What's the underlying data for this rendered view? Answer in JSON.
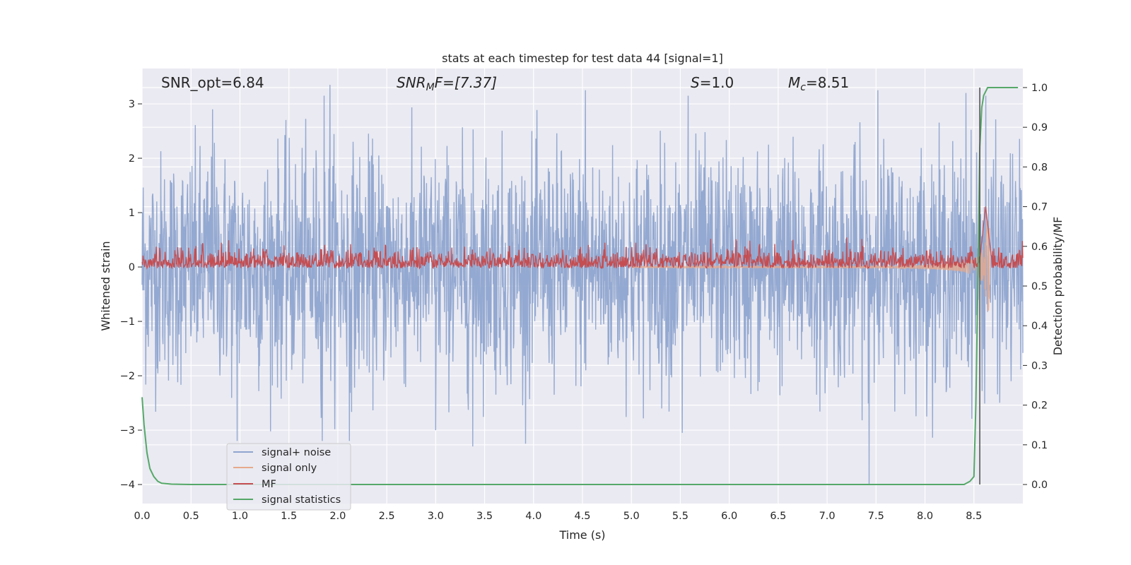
{
  "chart_data": {
    "type": "line",
    "title": "stats at each timestep for test data 44 [signal=1]",
    "xlabel": "Time (s)",
    "ylabel": "Whitened strain",
    "y2label": "Detection probability/MF",
    "xlim": [
      0.0,
      9.0
    ],
    "ylim": [
      -4.35,
      3.65
    ],
    "y2lim": [
      -0.048,
      1.048
    ],
    "xticks": [
      0.0,
      0.5,
      1.0,
      1.5,
      2.0,
      2.5,
      3.0,
      3.5,
      4.0,
      4.5,
      5.0,
      5.5,
      6.0,
      6.5,
      7.0,
      7.5,
      8.0,
      8.5
    ],
    "xtick_labels": [
      "0.0",
      "0.5",
      "1.0",
      "1.5",
      "2.0",
      "2.5",
      "3.0",
      "3.5",
      "4.0",
      "4.5",
      "5.0",
      "5.5",
      "6.0",
      "6.5",
      "7.0",
      "7.5",
      "8.0",
      "8.5"
    ],
    "yticks": [
      3,
      2,
      1,
      0,
      -1,
      -2,
      -3,
      -4
    ],
    "ytick_labels": [
      "3",
      "2",
      "1",
      "0",
      "−1",
      "−2",
      "−3",
      "−4"
    ],
    "y2ticks": [
      1.0,
      0.9,
      0.8,
      0.7,
      0.6,
      0.5,
      0.4,
      0.3,
      0.2,
      0.1,
      0.0
    ],
    "y2tick_labels": [
      "1.0",
      "0.9",
      "0.8",
      "0.7",
      "0.6",
      "0.5",
      "0.4",
      "0.3",
      "0.2",
      "0.1",
      "0.0"
    ],
    "grid": true,
    "legend_position": "lower-left",
    "annotations": {
      "snr_opt": "SNR_opt=6.84",
      "snr_mf_main": "SNR",
      "snr_mf_sub": "M",
      "snr_mf_rest": "F=[7.37]",
      "s_main": "S",
      "s_rest": "=1.0",
      "mc_main": "M",
      "mc_sub": "c",
      "mc_rest": "=8.51"
    },
    "vertical_marker_x": 8.56,
    "series": [
      {
        "name": "signal+ noise",
        "color": "#8fa5cf",
        "axis": "left",
        "noise_sigma": 1.0,
        "spikes": [
          {
            "x": 1.92,
            "y": 3.35
          },
          {
            "x": 1.86,
            "y": 3.15
          },
          {
            "x": 7.43,
            "y": -4.0
          },
          {
            "x": 3.38,
            "y": -3.3
          },
          {
            "x": 2.12,
            "y": -3.2
          },
          {
            "x": 1.84,
            "y": -3.2
          },
          {
            "x": 4.53,
            "y": 3.25
          },
          {
            "x": 5.58,
            "y": 3.15
          },
          {
            "x": 7.52,
            "y": 3.25
          },
          {
            "x": 8.42,
            "y": 3.2
          },
          {
            "x": 0.97,
            "y": -3.2
          },
          {
            "x": 5.52,
            "y": -3.05
          },
          {
            "x": 3.0,
            "y": -3.0
          },
          {
            "x": 8.62,
            "y": 3.15
          },
          {
            "x": 0.72,
            "y": 2.9
          }
        ]
      },
      {
        "name": "signal only",
        "color": "#e6a98c",
        "axis": "left",
        "chirp_start": 5.0,
        "chirp_end": 8.66,
        "max_amplitude": 0.85
      },
      {
        "name": "MF",
        "color": "#c44e52",
        "axis": "right",
        "baseline": 0.555,
        "noise": 0.018,
        "peak": {
          "x": 8.62,
          "y": 0.7
        }
      },
      {
        "name": "signal statistics",
        "color": "#55a868",
        "axis": "right",
        "x": [
          0.0,
          0.02,
          0.05,
          0.08,
          0.12,
          0.16,
          0.2,
          0.3,
          0.5,
          1.0,
          2.0,
          3.0,
          4.0,
          5.0,
          6.0,
          7.0,
          8.0,
          8.4,
          8.46,
          8.5,
          8.52,
          8.54,
          8.56,
          8.58,
          8.6,
          8.62,
          8.64,
          8.66,
          8.7,
          8.8,
          8.95
        ],
        "y": [
          0.22,
          0.15,
          0.08,
          0.04,
          0.02,
          0.008,
          0.003,
          0.001,
          0.0,
          0.0,
          0.0,
          0.0,
          0.0,
          0.0,
          0.0,
          0.0,
          0.0,
          0.0,
          0.008,
          0.02,
          0.2,
          0.5,
          0.85,
          0.95,
          0.98,
          0.99,
          1.0,
          1.0,
          1.0,
          1.0,
          1.0
        ]
      }
    ]
  }
}
